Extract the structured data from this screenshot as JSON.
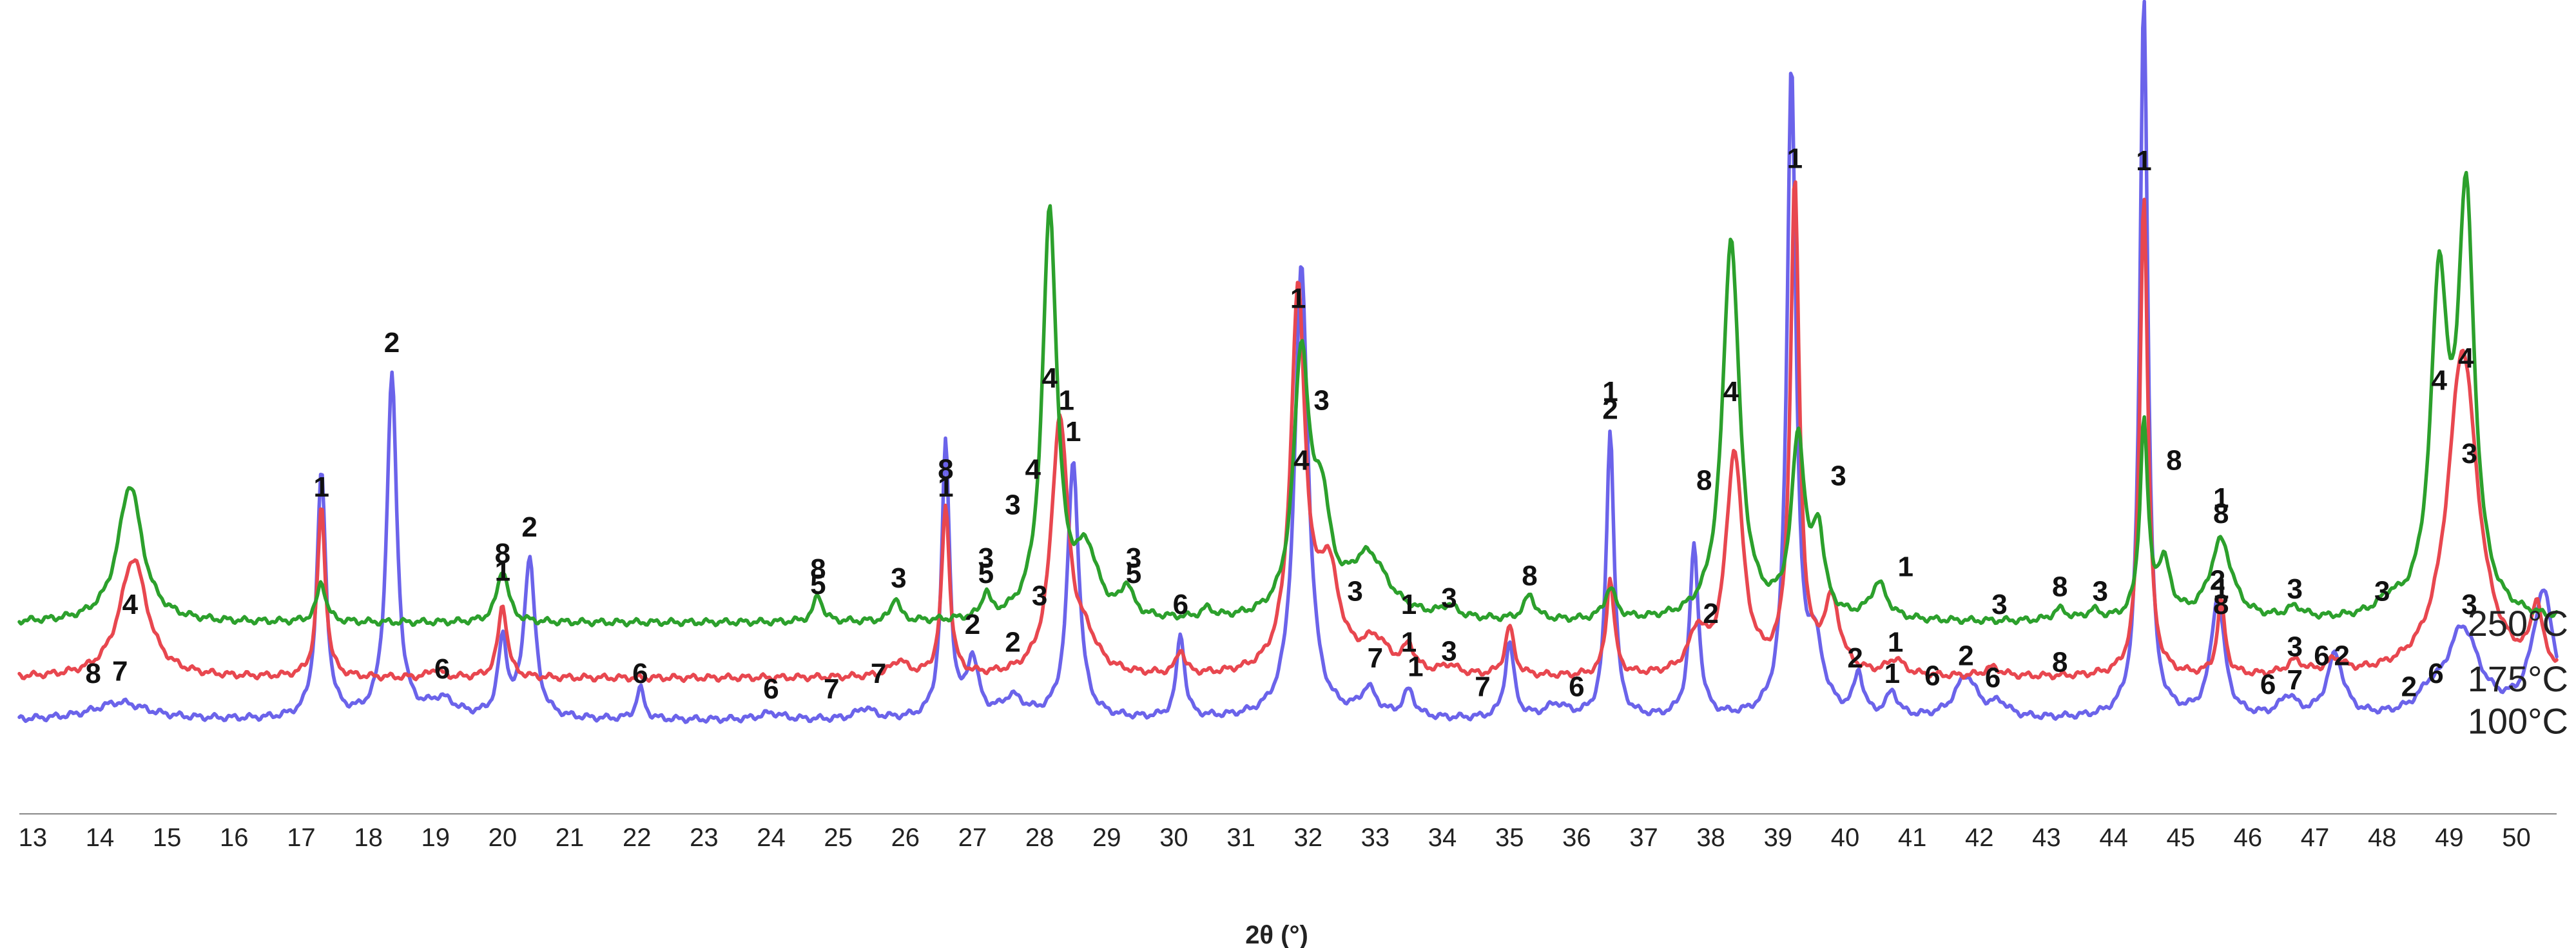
{
  "chart_data": {
    "type": "line",
    "title": "",
    "xlabel": "2θ (°)",
    "ylabel": "",
    "xlim": [
      12.8,
      50.6
    ],
    "x_ticks": [
      13,
      14,
      15,
      16,
      17,
      18,
      19,
      20,
      21,
      22,
      23,
      24,
      25,
      26,
      27,
      28,
      29,
      30,
      31,
      32,
      33,
      34,
      35,
      36,
      37,
      38,
      39,
      40,
      41,
      42,
      43,
      44,
      45,
      46,
      47,
      48,
      49,
      50
    ],
    "grid": false,
    "legend": "series labels at right end of each trace",
    "series": [
      {
        "name": "250°C",
        "color": "#2ca02c",
        "baseline": 420,
        "peaks": [
          [
            14.45,
            310,
            0.22
          ],
          [
            17.3,
            90,
            0.08
          ],
          [
            20.0,
            120,
            0.1
          ],
          [
            24.7,
            60,
            0.08
          ],
          [
            25.85,
            55,
            0.07
          ],
          [
            27.2,
            55,
            0.07
          ],
          [
            28.15,
            920,
            0.13
          ],
          [
            28.7,
            140,
            0.2
          ],
          [
            29.3,
            65,
            0.1
          ],
          [
            30.5,
            20,
            0.1
          ],
          [
            31.9,
            580,
            0.14
          ],
          [
            32.2,
            220,
            0.15
          ],
          [
            32.9,
            140,
            0.35
          ],
          [
            34.1,
            25,
            0.15
          ],
          [
            35.3,
            55,
            0.1
          ],
          [
            36.5,
            70,
            0.1
          ],
          [
            38.3,
            860,
            0.15
          ],
          [
            39.3,
            400,
            0.12
          ],
          [
            39.6,
            180,
            0.1
          ],
          [
            40.5,
            80,
            0.15
          ],
          [
            43.2,
            25,
            0.12
          ],
          [
            43.7,
            20,
            0.12
          ],
          [
            44.45,
            440,
            0.07
          ],
          [
            44.75,
            120,
            0.12
          ],
          [
            45.6,
            180,
            0.2
          ],
          [
            46.7,
            25,
            0.15
          ],
          [
            48.1,
            30,
            0.2
          ],
          [
            48.85,
            720,
            0.15
          ],
          [
            49.25,
            920,
            0.15
          ]
        ],
        "labels": [
          {
            "x": 14.45,
            "y": 440,
            "text": "4"
          },
          {
            "x": 13.9,
            "y": 285,
            "text": "8"
          },
          {
            "x": 24.7,
            "y": 520,
            "text": "8"
          },
          {
            "x": 24.7,
            "y": 485,
            "text": "5"
          },
          {
            "x": 25.9,
            "y": 500,
            "text": "3"
          },
          {
            "x": 27.2,
            "y": 545,
            "text": "3"
          },
          {
            "x": 27.2,
            "y": 510,
            "text": "5"
          },
          {
            "x": 28.15,
            "y": 950,
            "text": "4"
          },
          {
            "x": 27.6,
            "y": 665,
            "text": "3"
          },
          {
            "x": 29.4,
            "y": 545,
            "text": "3"
          },
          {
            "x": 29.4,
            "y": 510,
            "text": "5"
          },
          {
            "x": 31.9,
            "y": 765,
            "text": "4"
          },
          {
            "x": 32.7,
            "y": 470,
            "text": "3"
          },
          {
            "x": 33.5,
            "y": 440,
            "text": "1"
          },
          {
            "x": 34.1,
            "y": 455,
            "text": "3"
          },
          {
            "x": 35.3,
            "y": 505,
            "text": "8"
          },
          {
            "x": 38.0,
            "y": 420,
            "text": "2"
          },
          {
            "x": 38.3,
            "y": 920,
            "text": "4"
          },
          {
            "x": 39.9,
            "y": 730,
            "text": "3"
          },
          {
            "x": 40.9,
            "y": 525,
            "text": "1"
          },
          {
            "x": 42.3,
            "y": 440,
            "text": "3"
          },
          {
            "x": 43.2,
            "y": 480,
            "text": "8"
          },
          {
            "x": 43.8,
            "y": 470,
            "text": "3"
          },
          {
            "x": 44.9,
            "y": 765,
            "text": "8"
          },
          {
            "x": 45.6,
            "y": 680,
            "text": "1"
          },
          {
            "x": 45.6,
            "y": 645,
            "text": "8"
          },
          {
            "x": 46.7,
            "y": 475,
            "text": "3"
          },
          {
            "x": 48.0,
            "y": 470,
            "text": "3"
          },
          {
            "x": 48.85,
            "y": 945,
            "text": "4"
          },
          {
            "x": 49.25,
            "y": 995,
            "text": "4"
          }
        ]
      },
      {
        "name": "175°C",
        "color": "#e8474f",
        "baseline": 295,
        "peaks": [
          [
            14.5,
            270,
            0.25
          ],
          [
            17.3,
            385,
            0.07
          ],
          [
            19.0,
            20,
            0.1
          ],
          [
            20.0,
            165,
            0.08
          ],
          [
            25.9,
            35,
            0.15
          ],
          [
            26.6,
            385,
            0.07
          ],
          [
            28.3,
            580,
            0.15
          ],
          [
            28.7,
            60,
            0.2
          ],
          [
            30.1,
            55,
            0.07
          ],
          [
            31.85,
            850,
            0.13
          ],
          [
            32.3,
            220,
            0.2
          ],
          [
            33.0,
            70,
            0.25
          ],
          [
            33.5,
            55,
            0.1
          ],
          [
            34.1,
            20,
            0.15
          ],
          [
            35.0,
            110,
            0.08
          ],
          [
            36.5,
            220,
            0.07
          ],
          [
            37.8,
            90,
            0.15
          ],
          [
            38.35,
            500,
            0.15
          ],
          [
            39.25,
            1100,
            0.08
          ],
          [
            39.8,
            160,
            0.15
          ],
          [
            40.75,
            35,
            0.15
          ],
          [
            42.2,
            20,
            0.15
          ],
          [
            44.45,
            1090,
            0.07
          ],
          [
            45.6,
            165,
            0.07
          ],
          [
            46.7,
            30,
            0.15
          ],
          [
            47.3,
            30,
            0.15
          ],
          [
            49.2,
            740,
            0.27
          ],
          [
            50.3,
            140,
            0.1
          ]
        ],
        "labels": [
          {
            "x": 17.3,
            "y": 705,
            "text": "1"
          },
          {
            "x": 20.0,
            "y": 555,
            "text": "8"
          },
          {
            "x": 20.0,
            "y": 515,
            "text": "1"
          },
          {
            "x": 26.6,
            "y": 745,
            "text": "8"
          },
          {
            "x": 26.6,
            "y": 705,
            "text": "1"
          },
          {
            "x": 28.4,
            "y": 900,
            "text": "1"
          },
          {
            "x": 27.9,
            "y": 745,
            "text": "4"
          },
          {
            "x": 31.85,
            "y": 1130,
            "text": "1"
          },
          {
            "x": 32.2,
            "y": 900,
            "text": "3"
          },
          {
            "x": 33.5,
            "y": 355,
            "text": "1"
          },
          {
            "x": 34.1,
            "y": 335,
            "text": "3"
          },
          {
            "x": 37.9,
            "y": 720,
            "text": "8"
          },
          {
            "x": 39.25,
            "y": 1445,
            "text": "1"
          },
          {
            "x": 40.75,
            "y": 355,
            "text": "1"
          },
          {
            "x": 43.2,
            "y": 310,
            "text": "8"
          },
          {
            "x": 44.45,
            "y": 1440,
            "text": "1"
          },
          {
            "x": 45.6,
            "y": 475,
            "text": "1"
          },
          {
            "x": 45.6,
            "y": 440,
            "text": "8"
          },
          {
            "x": 46.7,
            "y": 345,
            "text": "3"
          },
          {
            "x": 49.3,
            "y": 780,
            "text": "3"
          }
        ]
      },
      {
        "name": "100°C",
        "color": "#6b63ea",
        "baseline": 200,
        "peaks": [
          [
            14.3,
            40,
            0.5
          ],
          [
            17.3,
            555,
            0.08
          ],
          [
            18.35,
            770,
            0.09
          ],
          [
            19.1,
            40,
            0.25
          ],
          [
            20.0,
            170,
            0.08
          ],
          [
            20.4,
            360,
            0.1
          ],
          [
            22.05,
            70,
            0.07
          ],
          [
            24.0,
            15,
            0.2
          ],
          [
            25.4,
            25,
            0.15
          ],
          [
            26.6,
            620,
            0.07
          ],
          [
            27.0,
            130,
            0.1
          ],
          [
            27.6,
            45,
            0.2
          ],
          [
            28.5,
            580,
            0.1
          ],
          [
            30.1,
            190,
            0.07
          ],
          [
            31.9,
            1020,
            0.12
          ],
          [
            32.9,
            60,
            0.15
          ],
          [
            33.5,
            60,
            0.1
          ],
          [
            35.0,
            170,
            0.08
          ],
          [
            35.7,
            30,
            0.2
          ],
          [
            36.5,
            650,
            0.07
          ],
          [
            37.75,
            385,
            0.08
          ],
          [
            39.2,
            1460,
            0.08
          ],
          [
            39.55,
            150,
            0.15
          ],
          [
            40.2,
            95,
            0.08
          ],
          [
            40.7,
            55,
            0.1
          ],
          [
            41.8,
            95,
            0.2
          ],
          [
            42.3,
            30,
            0.15
          ],
          [
            44.45,
            1640,
            0.07
          ],
          [
            45.55,
            270,
            0.12
          ],
          [
            46.6,
            45,
            0.15
          ],
          [
            47.3,
            140,
            0.15
          ],
          [
            48.7,
            35,
            0.2
          ],
          [
            49.2,
            200,
            0.3
          ],
          [
            50.4,
            280,
            0.2
          ]
        ],
        "labels": [
          {
            "x": 14.3,
            "y": 290,
            "text": "7"
          },
          {
            "x": 18.35,
            "y": 1030,
            "text": "2"
          },
          {
            "x": 19.1,
            "y": 295,
            "text": "6"
          },
          {
            "x": 20.4,
            "y": 615,
            "text": "2"
          },
          {
            "x": 22.05,
            "y": 285,
            "text": "6"
          },
          {
            "x": 24.0,
            "y": 250,
            "text": "6"
          },
          {
            "x": 24.9,
            "y": 250,
            "text": "7"
          },
          {
            "x": 25.6,
            "y": 285,
            "text": "7"
          },
          {
            "x": 27.0,
            "y": 395,
            "text": "2"
          },
          {
            "x": 27.6,
            "y": 355,
            "text": "2"
          },
          {
            "x": 28.5,
            "y": 830,
            "text": "1"
          },
          {
            "x": 28.0,
            "y": 460,
            "text": "3"
          },
          {
            "x": 30.1,
            "y": 440,
            "text": "6"
          },
          {
            "x": 33.0,
            "y": 320,
            "text": "7"
          },
          {
            "x": 33.6,
            "y": 300,
            "text": "1"
          },
          {
            "x": 34.6,
            "y": 255,
            "text": "7"
          },
          {
            "x": 36.0,
            "y": 255,
            "text": "6"
          },
          {
            "x": 36.5,
            "y": 920,
            "text": "1"
          },
          {
            "x": 36.5,
            "y": 880,
            "text": "2"
          },
          {
            "x": 40.15,
            "y": 320,
            "text": "2"
          },
          {
            "x": 40.7,
            "y": 285,
            "text": "1"
          },
          {
            "x": 41.3,
            "y": 280,
            "text": "6"
          },
          {
            "x": 41.8,
            "y": 325,
            "text": "2"
          },
          {
            "x": 42.2,
            "y": 275,
            "text": "6"
          },
          {
            "x": 45.55,
            "y": 495,
            "text": "2"
          },
          {
            "x": 46.3,
            "y": 260,
            "text": "6"
          },
          {
            "x": 46.7,
            "y": 270,
            "text": "7"
          },
          {
            "x": 47.1,
            "y": 325,
            "text": "6"
          },
          {
            "x": 47.4,
            "y": 325,
            "text": "2"
          },
          {
            "x": 48.4,
            "y": 255,
            "text": "2"
          },
          {
            "x": 48.8,
            "y": 285,
            "text": "6"
          },
          {
            "x": 49.3,
            "y": 440,
            "text": "3"
          }
        ]
      }
    ],
    "ylim": [
      0,
      1780
    ]
  }
}
